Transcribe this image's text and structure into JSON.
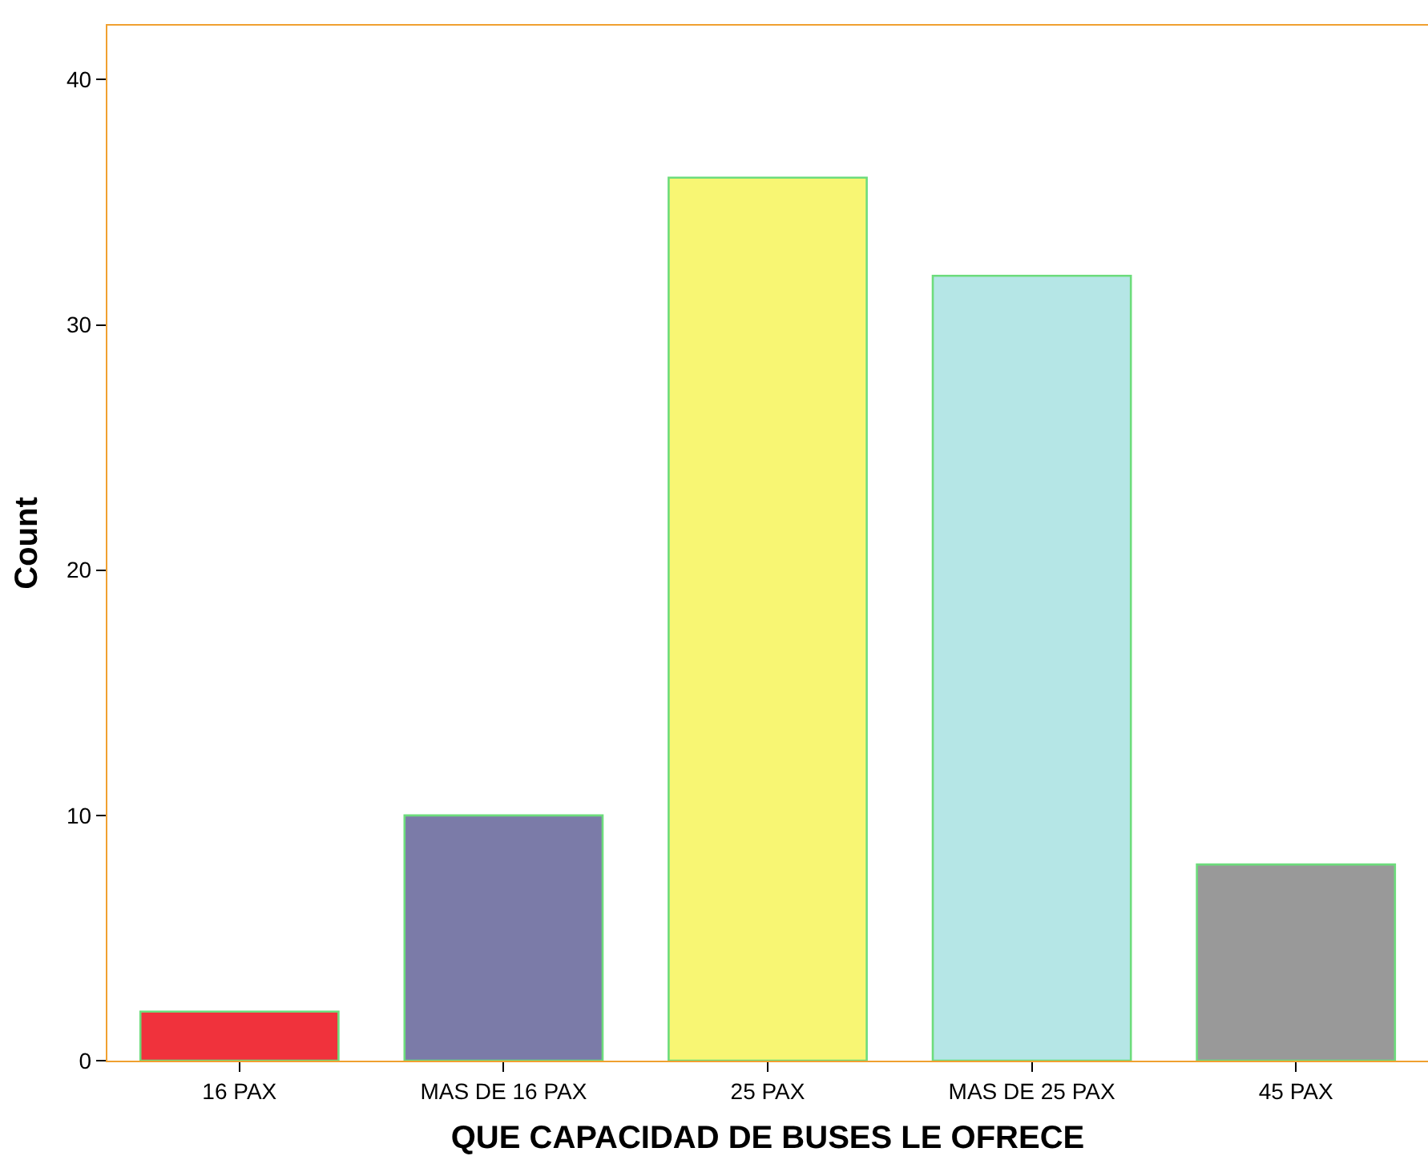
{
  "chart_data": {
    "type": "bar",
    "xlabel": "QUE CAPACIDAD DE BUSES LE OFRECE",
    "ylabel": "Count",
    "categories": [
      "16 PAX",
      "MAS DE 16 PAX",
      "25 PAX",
      "MAS DE 25 PAX",
      "45 PAX"
    ],
    "values": [
      2,
      10,
      36,
      32,
      8
    ],
    "colors": [
      "#f0323c",
      "#7b7ba8",
      "#f8f673",
      "#b5e6e6",
      "#999999"
    ],
    "ylim": [
      0,
      42.2
    ],
    "yticks": [
      0,
      10,
      20,
      30,
      40
    ],
    "grid": false
  }
}
